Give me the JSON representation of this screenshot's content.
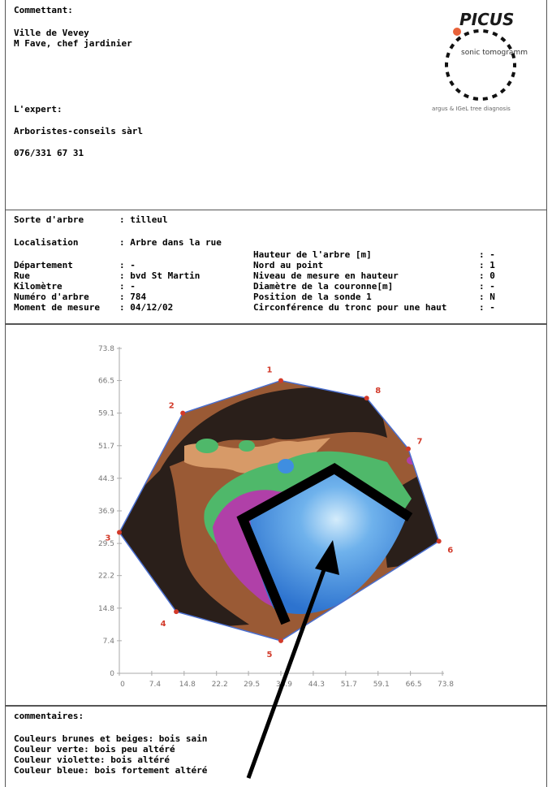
{
  "client": {
    "label": "Commettant:",
    "line1": "Ville de Vevey",
    "line2": "M Fave, chef jardinier"
  },
  "logo": {
    "title": "PICUS",
    "subtitle": "sonic tomogramm",
    "tagline": "argus & IGeL tree diagnosis",
    "dot_color": "#e8623a"
  },
  "expert": {
    "label": "L'expert:",
    "name": "Arboristes-conseils sàrl",
    "phone": "076/331 67 31"
  },
  "tree": {
    "species_label": "Sorte d'arbre",
    "species_value": ": tilleul",
    "location_label": "Localisation",
    "location_value": ": Arbre dans la rue",
    "left_rows": [
      {
        "label": "Département",
        "value": ": -"
      },
      {
        "label": "Rue",
        "value": ": bvd St Martin"
      },
      {
        "label": "Kilomètre",
        "value": ": -"
      },
      {
        "label": "Numéro d'arbre",
        "value": ": 784"
      },
      {
        "label": "Moment de mesure",
        "value": ": 04/12/02"
      }
    ],
    "right_rows": [
      {
        "label": "Hauteur de l'arbre [m]",
        "value": ": -"
      },
      {
        "label": "Nord au point",
        "value": ": 1"
      },
      {
        "label": "Niveau de mesure en hauteur",
        "value": ": 0"
      },
      {
        "label": "Diamètre de la couronne[m]",
        "value": ": -"
      },
      {
        "label": "Position de la sonde 1",
        "value": ": N"
      },
      {
        "label": "Circonférence du tronc pour une haut",
        "value": ": -"
      }
    ]
  },
  "tomogram": {
    "y_ticks": [
      "73.8",
      "66.5",
      "59.1",
      "51.7",
      "44.3",
      "36.9",
      "29.5",
      "22.2",
      "14.8",
      "7.4",
      "0"
    ],
    "x_ticks": [
      "0",
      "7.4",
      "14.8",
      "22.2",
      "29.5",
      "36.9",
      "44.3",
      "51.7",
      "59.1",
      "66.5",
      "73.8"
    ],
    "sensors": [
      {
        "n": "1",
        "x": 36.9,
        "y": 66.5
      },
      {
        "n": "2",
        "x": 14.5,
        "y": 59.1
      },
      {
        "n": "3",
        "x": 0,
        "y": 32.0
      },
      {
        "n": "4",
        "x": 13.0,
        "y": 14.0
      },
      {
        "n": "5",
        "x": 36.9,
        "y": 7.4
      },
      {
        "n": "6",
        "x": 73.0,
        "y": 30.0
      },
      {
        "n": "7",
        "x": 66.0,
        "y": 51.0
      },
      {
        "n": "8",
        "x": 56.5,
        "y": 62.5
      }
    ],
    "colors": {
      "outline": "#4a6fd0",
      "dark": "#2a1f1a",
      "brown": "#9a5a35",
      "tan": "#d79a68",
      "green": "#4fb86a",
      "violet": "#b040a8",
      "blue": "#3f8ee0",
      "light_blue": "#a8d4f4",
      "sensor": "#d23a2a"
    }
  },
  "comments": {
    "label": "commentaires:",
    "lines": [
      "Couleurs brunes et beiges: bois sain",
      "Couleur verte: bois peu altéré",
      "Couleur violette: bois altéré",
      "Couleur bleue: bois fortement altéré"
    ]
  }
}
